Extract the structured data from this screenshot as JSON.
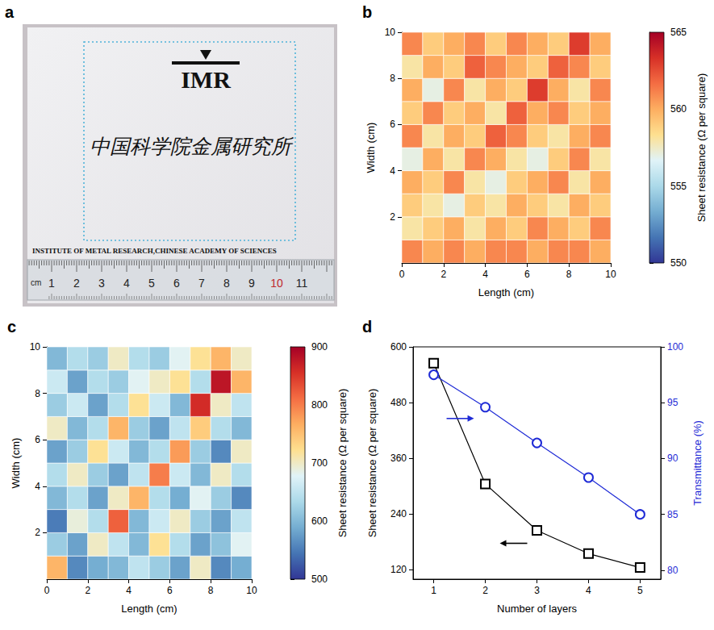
{
  "panel_a": {
    "panel": "a",
    "logo": "IMR",
    "chinese_text": "中国科学院金属研究所",
    "english_text": "INSTITUTE OF METAL RESEARCH,CHINESE ACADEMY OF SCIENCES",
    "ruler": {
      "unit": "cm",
      "marks": [
        1,
        2,
        3,
        4,
        5,
        6,
        7,
        8,
        9,
        10,
        11
      ],
      "highlight": 10
    }
  },
  "chart_data": [
    {
      "panel": "b",
      "type": "heatmap",
      "x_label": "Length (cm)",
      "y_label": "Width (cm)",
      "x": [
        0.5,
        1.5,
        2.5,
        3.5,
        4.5,
        5.5,
        6.5,
        7.5,
        8.5,
        9.5
      ],
      "y": [
        0.5,
        1.5,
        2.5,
        3.5,
        4.5,
        5.5,
        6.5,
        7.5,
        8.5,
        9.5
      ],
      "values": [
        [
          561,
          560,
          561,
          560,
          561,
          561,
          560,
          561,
          561,
          560
        ],
        [
          558,
          559,
          560,
          558,
          560,
          559,
          561,
          560,
          559,
          561
        ],
        [
          559,
          558,
          557,
          559,
          558,
          560,
          559,
          558,
          560,
          559
        ],
        [
          560,
          559,
          561,
          558,
          557,
          559,
          560,
          561,
          558,
          560
        ],
        [
          557,
          560,
          558,
          561,
          560,
          558,
          557,
          559,
          561,
          558
        ],
        [
          561,
          558,
          560,
          559,
          562,
          561,
          559,
          558,
          560,
          561
        ],
        [
          559,
          561,
          559,
          560,
          558,
          562,
          560,
          561,
          559,
          560
        ],
        [
          560,
          557,
          561,
          558,
          560,
          559,
          563,
          560,
          558,
          561
        ],
        [
          558,
          560,
          559,
          562,
          561,
          560,
          559,
          562,
          561,
          559
        ],
        [
          561,
          559,
          560,
          561,
          559,
          561,
          560,
          559,
          563,
          560
        ]
      ],
      "xlim": [
        0,
        10
      ],
      "xticks": [
        0,
        2,
        4,
        6,
        8,
        10
      ],
      "ylim": [
        0,
        10
      ],
      "yticks": [
        2,
        4,
        6,
        8,
        10
      ],
      "colorbar": {
        "label": "Sheet resistance (Ω per square)",
        "range": [
          550,
          565
        ],
        "ticks": [
          550,
          555,
          560,
          565
        ]
      },
      "grid": false
    },
    {
      "panel": "c",
      "type": "heatmap",
      "x_label": "Length (cm)",
      "y_label": "Width (cm)",
      "x": [
        0.5,
        1.5,
        2.5,
        3.5,
        4.5,
        5.5,
        6.5,
        7.5,
        8.5,
        9.5
      ],
      "y": [
        0.5,
        1.5,
        2.5,
        3.5,
        4.5,
        5.5,
        6.5,
        7.5,
        8.5,
        9.5
      ],
      "values": [
        [
          760,
          560,
          590,
          600,
          650,
          620,
          580,
          700,
          560,
          590
        ],
        [
          620,
          580,
          700,
          650,
          600,
          720,
          640,
          580,
          610,
          680
        ],
        [
          550,
          690,
          640,
          820,
          600,
          660,
          700,
          620,
          580,
          650
        ],
        [
          600,
          640,
          580,
          700,
          760,
          640,
          590,
          680,
          620,
          560
        ],
        [
          640,
          700,
          620,
          580,
          650,
          800,
          660,
          600,
          700,
          640
        ],
        [
          580,
          620,
          720,
          660,
          600,
          640,
          780,
          620,
          560,
          700
        ],
        [
          700,
          600,
          640,
          760,
          620,
          580,
          650,
          740,
          640,
          600
        ],
        [
          620,
          660,
          580,
          640,
          720,
          660,
          600,
          860,
          700,
          650
        ],
        [
          660,
          580,
          640,
          620,
          680,
          700,
          720,
          640,
          880,
          760
        ],
        [
          600,
          640,
          620,
          700,
          640,
          620,
          680,
          720,
          760,
          700
        ]
      ],
      "xlim": [
        0,
        10
      ],
      "xticks": [
        0,
        2,
        4,
        6,
        8,
        10
      ],
      "ylim": [
        0,
        10
      ],
      "yticks": [
        2,
        4,
        6,
        8,
        10
      ],
      "colorbar": {
        "label": "Sheet resistance (Ω per square)",
        "range": [
          500,
          900
        ],
        "ticks": [
          500,
          600,
          700,
          800,
          900
        ]
      },
      "grid": false
    },
    {
      "panel": "d",
      "type": "line",
      "x_label": "Number of layers",
      "y_label": "Sheet resistance (Ω per square)",
      "y2_label": "Transmittance (%)",
      "x": [
        1,
        2,
        3,
        4,
        5
      ],
      "xlim": [
        0.6,
        5.4
      ],
      "xticks": [
        1,
        2,
        3,
        4,
        5
      ],
      "ylim": [
        100,
        600
      ],
      "yticks": [
        120,
        240,
        360,
        480,
        600
      ],
      "y2lim": [
        79.2,
        100
      ],
      "y2ticks": [
        80,
        85,
        90,
        95,
        100
      ],
      "grid": false,
      "series": [
        {
          "axis": "y",
          "color": "#000000",
          "marker": "square",
          "line_style": "solid",
          "values": [
            565,
            305,
            205,
            155,
            125
          ]
        },
        {
          "axis": "y2",
          "color": "#1f2bd6",
          "marker": "circle",
          "line_style": "solid",
          "values": [
            97.5,
            94.6,
            91.4,
            88.3,
            85.0
          ]
        }
      ]
    }
  ]
}
